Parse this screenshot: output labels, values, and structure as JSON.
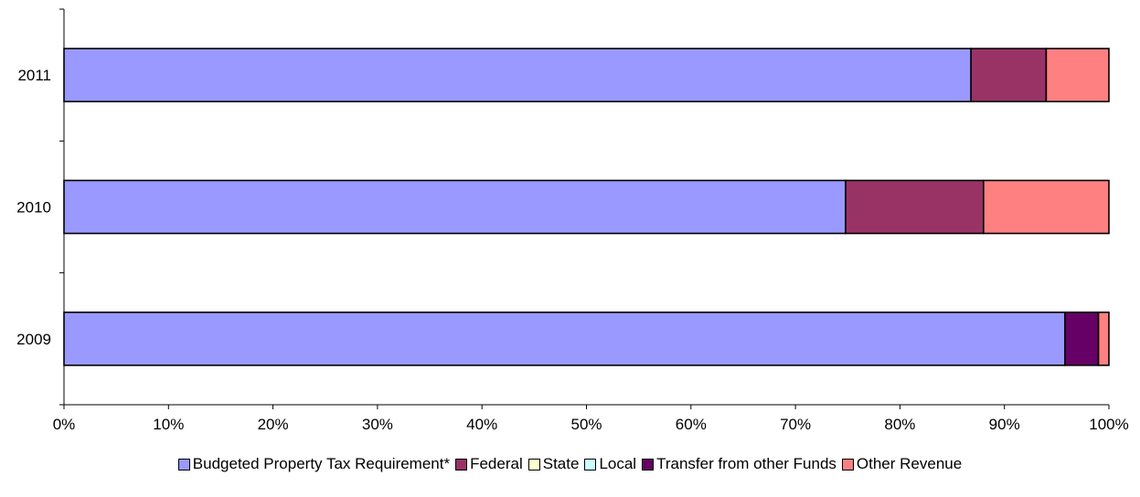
{
  "chart_data": {
    "type": "bar",
    "orientation": "horizontal",
    "stacked": "percent",
    "title": "",
    "xlabel": "",
    "ylabel": "",
    "xlim": [
      0,
      100
    ],
    "x_ticks": [
      "0%",
      "10%",
      "20%",
      "30%",
      "40%",
      "50%",
      "60%",
      "70%",
      "80%",
      "90%",
      "100%"
    ],
    "grid": false,
    "legend_position": "bottom",
    "categories": [
      "2009",
      "2010",
      "2011"
    ],
    "series": [
      {
        "name": "Budgeted Property Tax Requirement*",
        "color": "#9999FF",
        "values": [
          95.8,
          74.8,
          86.8
        ]
      },
      {
        "name": "Federal",
        "color": "#993366",
        "values": [
          0,
          13.2,
          7.2
        ]
      },
      {
        "name": "State",
        "color": "#FFFFCC",
        "values": [
          0,
          0,
          0
        ]
      },
      {
        "name": "Local",
        "color": "#CCFFFF",
        "values": [
          0,
          0,
          0
        ]
      },
      {
        "name": "Transfer from other Funds",
        "color": "#660066",
        "values": [
          3.2,
          0,
          0
        ]
      },
      {
        "name": "Other Revenue",
        "color": "#FF8080",
        "values": [
          1.0,
          12.0,
          6.0
        ]
      }
    ]
  }
}
